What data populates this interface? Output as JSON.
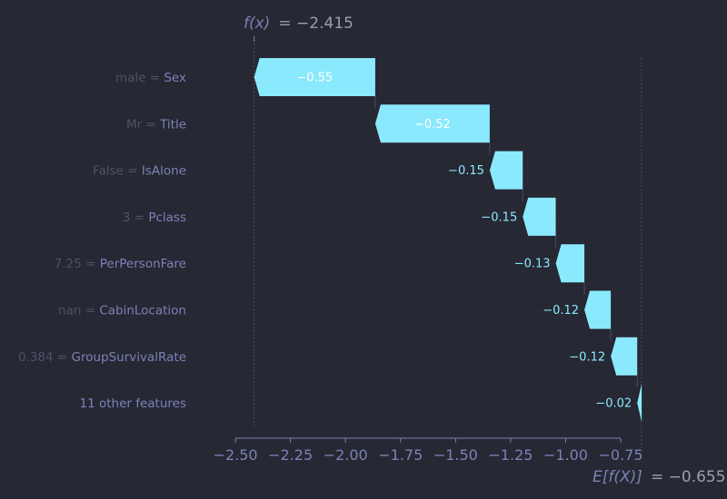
{
  "chart_data": {
    "type": "waterfall",
    "fx_label": "f(x)",
    "fx_value": "= −2.415",
    "ex_label": "E[f(X)]",
    "ex_value": "= −0.655",
    "fx": -2.415,
    "base_value": -0.655,
    "xlim": [
      -2.62,
      -0.68
    ],
    "xticks": [
      -2.5,
      -2.25,
      -2.0,
      -1.75,
      -1.5,
      -1.25,
      -1.0,
      -0.75
    ],
    "xtick_labels": [
      "−2.50",
      "−2.25",
      "−2.00",
      "−1.75",
      "−1.50",
      "−1.25",
      "−1.00",
      "−0.75"
    ],
    "features": [
      {
        "value": "male",
        "name": "Sex",
        "contribution": -0.55,
        "label": "−0.55"
      },
      {
        "value": "Mr",
        "name": "Title",
        "contribution": -0.52,
        "label": "−0.52"
      },
      {
        "value": "False",
        "name": "IsAlone",
        "contribution": -0.15,
        "label": "−0.15"
      },
      {
        "value": "3",
        "name": "Pclass",
        "contribution": -0.15,
        "label": "−0.15"
      },
      {
        "value": "7.25",
        "name": "PerPersonFare",
        "contribution": -0.13,
        "label": "−0.13"
      },
      {
        "value": "nan",
        "name": "CabinLocation",
        "contribution": -0.12,
        "label": "−0.12"
      },
      {
        "value": "0.384",
        "name": "GroupSurvivalRate",
        "contribution": -0.12,
        "label": "−0.12"
      },
      {
        "value": "",
        "name": "11 other features",
        "contribution": -0.02,
        "label": "−0.02"
      }
    ],
    "colors": {
      "bar": "#8be9fd",
      "bar_text_inside": "#ffffff",
      "bar_text_outside": "#8be9fd",
      "feature_name": "#7b82b8",
      "feature_value": "#4e5268",
      "axis": "#7b82b8",
      "background": "#262833"
    }
  }
}
